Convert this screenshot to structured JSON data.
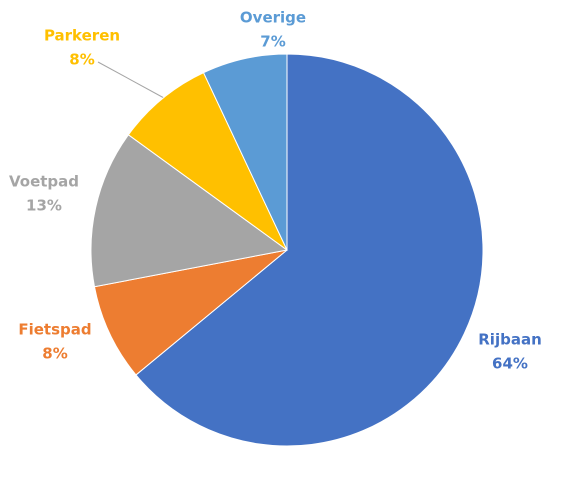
{
  "chart_data": {
    "type": "pie",
    "categories": [
      "Rijbaan",
      "Fietspad",
      "Voetpad",
      "Parkeren",
      "Overige"
    ],
    "values": [
      64,
      8,
      13,
      8,
      7
    ],
    "value_labels": [
      "64%",
      "8%",
      "13%",
      "8%",
      "7%"
    ],
    "colors": [
      "#4472c4",
      "#ed7d31",
      "#a5a5a5",
      "#ffc000",
      "#5b9bd5"
    ]
  }
}
